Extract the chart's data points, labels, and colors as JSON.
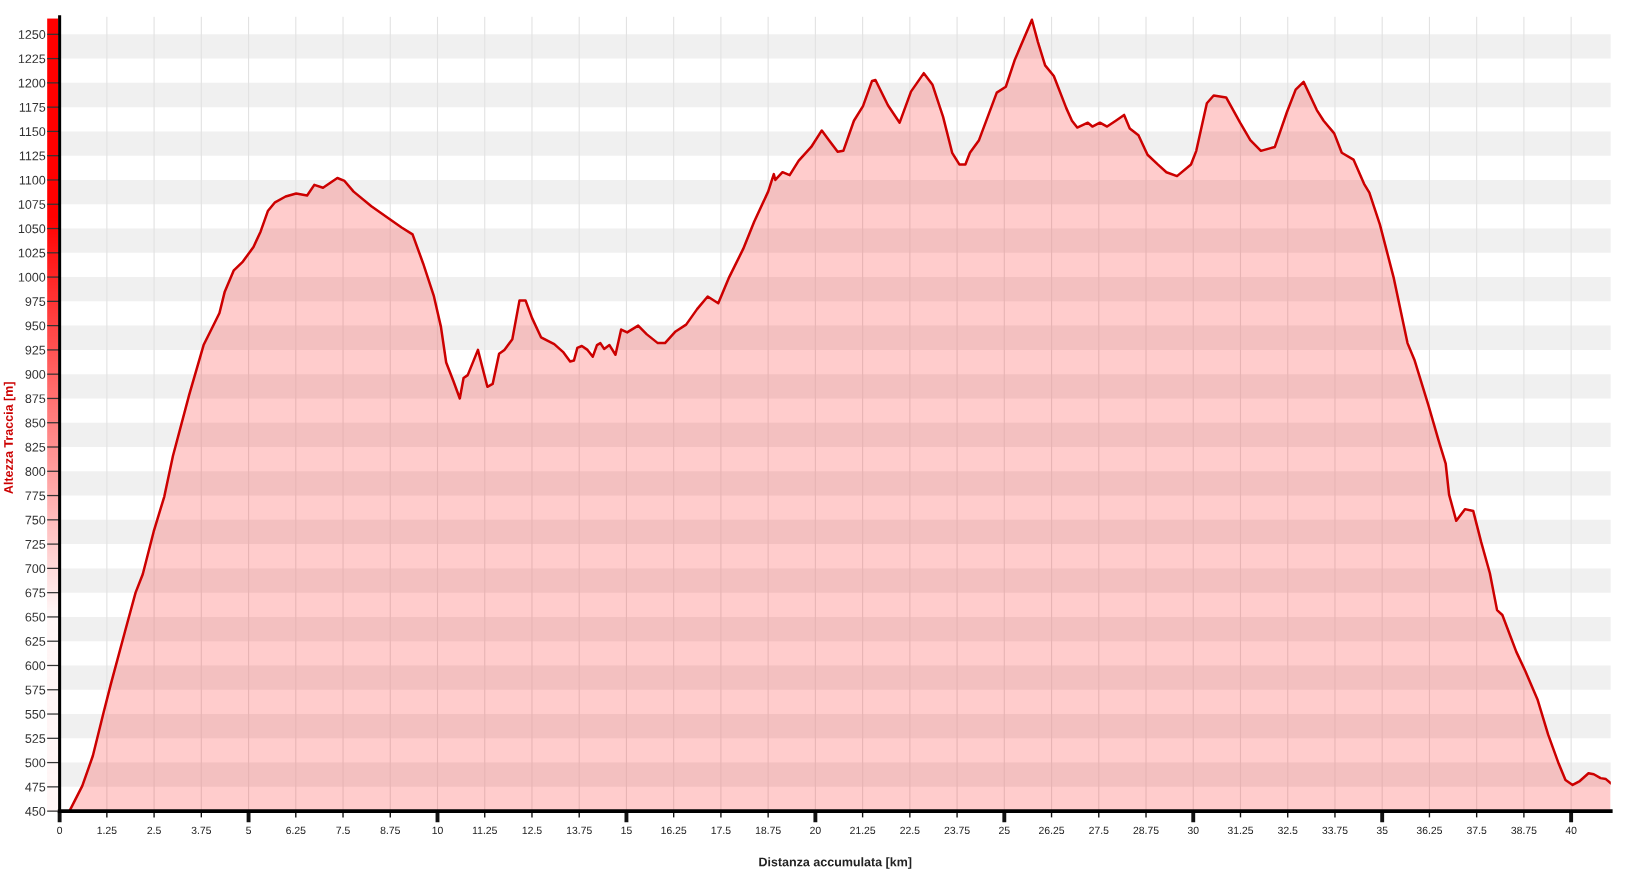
{
  "chart_data": {
    "type": "area",
    "xlabel": "Distanza accumulata [km]",
    "ylabel": "Altezza Traccia [m]",
    "x": [
      0,
      0.26,
      0.6,
      0.88,
      1.16,
      1.35,
      1.73,
      2.01,
      2.2,
      2.49,
      2.77,
      3.0,
      3.43,
      3.81,
      4.09,
      4.23,
      4.37,
      4.61,
      4.85,
      5.13,
      5.32,
      5.51,
      5.7,
      5.98,
      6.26,
      6.55,
      6.74,
      6.97,
      7.35,
      7.54,
      7.78,
      8.25,
      8.72,
      9.05,
      9.34,
      9.62,
      9.9,
      10.09,
      10.23,
      10.42,
      10.59,
      10.69,
      10.8,
      11.07,
      11.32,
      11.46,
      11.63,
      11.77,
      11.98,
      12.17,
      12.33,
      12.5,
      12.74,
      13.09,
      13.32,
      13.51,
      13.61,
      13.7,
      13.82,
      13.97,
      14.11,
      14.22,
      14.31,
      14.41,
      14.55,
      14.71,
      14.86,
      15.02,
      15.31,
      15.54,
      15.83,
      16.02,
      16.3,
      16.58,
      16.87,
      17.15,
      17.43,
      17.72,
      18.09,
      18.38,
      18.75,
      18.9,
      18.94,
      19.13,
      19.32,
      19.56,
      19.89,
      20.17,
      20.36,
      20.59,
      20.74,
      21.02,
      21.26,
      21.5,
      21.59,
      21.92,
      22.23,
      22.53,
      22.87,
      23.1,
      23.38,
      23.62,
      23.81,
      23.97,
      24.09,
      24.33,
      24.8,
      25.04,
      25.27,
      25.73,
      25.89,
      26.08,
      26.31,
      26.64,
      26.79,
      26.93,
      27.21,
      27.33,
      27.53,
      27.72,
      27.95,
      28.17,
      28.32,
      28.55,
      28.79,
      29.06,
      29.29,
      29.57,
      29.94,
      30.08,
      30.36,
      30.54,
      30.87,
      31.24,
      31.51,
      31.79,
      32.16,
      32.48,
      32.71,
      32.92,
      33.27,
      33.45,
      33.73,
      33.93,
      34.24,
      34.52,
      34.66,
      34.94,
      35.3,
      35.67,
      35.86,
      36.23,
      36.49,
      36.68,
      36.77,
      36.96,
      37.19,
      37.41,
      37.62,
      37.85,
      38.04,
      38.18,
      38.55,
      38.79,
      39.11,
      39.39,
      39.67,
      39.85,
      40.04,
      40.23,
      40.46,
      40.6,
      40.78,
      40.92,
      41.04
    ],
    "series": [
      {
        "color": "#cc0000",
        "values": [
          450,
          450,
          476,
          507,
          551,
          580,
          635,
          675,
          694,
          738,
          774,
          816,
          879,
          930,
          952,
          963,
          985,
          1007,
          1016,
          1031,
          1047,
          1068,
          1077,
          1083,
          1086,
          1084,
          1095,
          1092,
          1102,
          1099,
          1088,
          1073,
          1060,
          1051,
          1044,
          1014,
          981,
          949,
          912,
          893,
          875,
          896,
          899,
          925,
          887,
          890,
          921,
          925,
          936,
          976,
          976,
          958,
          938,
          931,
          923,
          913,
          914,
          927,
          929,
          925,
          918,
          930,
          932,
          926,
          930,
          920,
          946,
          943,
          950,
          941,
          932,
          932,
          944,
          951,
          967,
          980,
          973,
          1000,
          1029,
          1057,
          1088,
          1106,
          1100,
          1108,
          1105,
          1120,
          1134,
          1151,
          1141,
          1129,
          1130,
          1161,
          1176,
          1202,
          1203,
          1177,
          1159,
          1191,
          1210,
          1198,
          1165,
          1128,
          1116,
          1116,
          1128,
          1141,
          1190,
          1196,
          1223,
          1265,
          1242,
          1218,
          1207,
          1174,
          1161,
          1154,
          1159,
          1155,
          1159,
          1155,
          1161,
          1167,
          1153,
          1146,
          1126,
          1116,
          1108,
          1104,
          1116,
          1130,
          1179,
          1187,
          1185,
          1159,
          1141,
          1130,
          1134,
          1170,
          1193,
          1201,
          1172,
          1161,
          1148,
          1128,
          1121,
          1096,
          1087,
          1054,
          1000,
          932,
          914,
          867,
          832,
          808,
          776,
          749,
          761,
          759,
          727,
          695,
          657,
          652,
          614,
          594,
          565,
          529,
          499,
          482,
          477,
          481,
          489,
          488,
          484,
          483,
          479
        ]
      }
    ],
    "xlim": [
      0,
      41.05
    ],
    "ylim": [
      450,
      1268
    ],
    "xticks": [
      0,
      1.25,
      2.5,
      3.75,
      5,
      6.25,
      7.5,
      8.75,
      10,
      11.25,
      12.5,
      13.75,
      15,
      16.25,
      17.5,
      18.75,
      20,
      21.25,
      22.5,
      23.75,
      25,
      26.25,
      27.5,
      28.75,
      30,
      31.25,
      32.5,
      33.75,
      35,
      36.25,
      37.5,
      38.75,
      40
    ],
    "yticks": [
      450,
      475,
      500,
      525,
      550,
      575,
      600,
      625,
      650,
      675,
      700,
      725,
      750,
      775,
      800,
      825,
      850,
      875,
      900,
      925,
      950,
      975,
      1000,
      1025,
      1050,
      1075,
      1100,
      1125,
      1150,
      1175,
      1200,
      1225,
      1250
    ],
    "grid": true
  }
}
